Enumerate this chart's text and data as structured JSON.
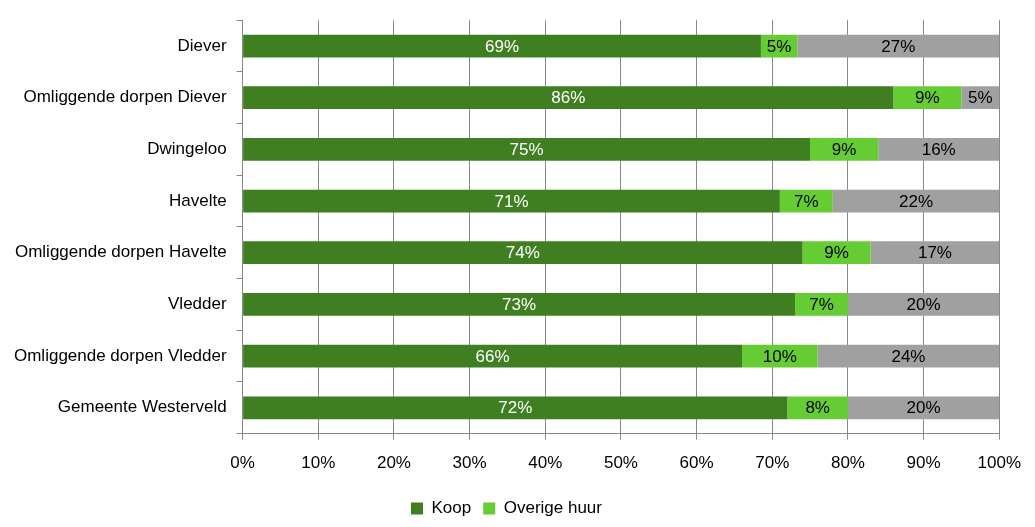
{
  "chart_data": {
    "type": "bar",
    "orientation": "horizontal",
    "stacked": true,
    "categories": [
      "Diever",
      "Omliggende dorpen Diever",
      "Dwingeloo",
      "Havelte",
      "Omliggende dorpen Havelte",
      "Vledder",
      "Omliggende dorpen Vledder",
      "Gemeente Westerveld"
    ],
    "series": [
      {
        "name": "Koop",
        "color": "#3f7f22",
        "values": [
          68.5,
          86,
          75,
          71,
          74,
          73,
          66,
          72
        ],
        "value_labels": [
          "69%",
          "86%",
          "75%",
          "71%",
          "74%",
          "73%",
          "66%",
          "72%"
        ]
      },
      {
        "name": "Overige huur",
        "color": "#66cc33",
        "values": [
          4.8,
          9,
          9,
          7,
          9,
          7,
          10,
          8
        ],
        "value_labels": [
          "5%",
          "9%",
          "9%",
          "7%",
          "9%",
          "7%",
          "10%",
          "8%"
        ]
      },
      {
        "color": "#a0a0a0",
        "values": [
          26.7,
          5,
          16,
          22,
          17,
          20,
          24,
          20
        ],
        "value_labels": [
          "27%",
          "5%",
          "16%",
          "22%",
          "17%",
          "20%",
          "24%",
          "20%"
        ]
      }
    ],
    "xlim": [
      0,
      100
    ],
    "xticks": [
      {
        "value": 0,
        "label": "0%"
      },
      {
        "value": 10,
        "label": "10%"
      },
      {
        "value": 20,
        "label": "20%"
      },
      {
        "value": 30,
        "label": "30%"
      },
      {
        "value": 40,
        "label": "40%"
      },
      {
        "value": 50,
        "label": "50%"
      },
      {
        "value": 60,
        "label": "60%"
      },
      {
        "value": 70,
        "label": "70%"
      },
      {
        "value": 80,
        "label": "80%"
      },
      {
        "value": 90,
        "label": "90%"
      },
      {
        "value": 100,
        "label": "100%"
      }
    ],
    "grid": "x",
    "legend": "bottom"
  }
}
